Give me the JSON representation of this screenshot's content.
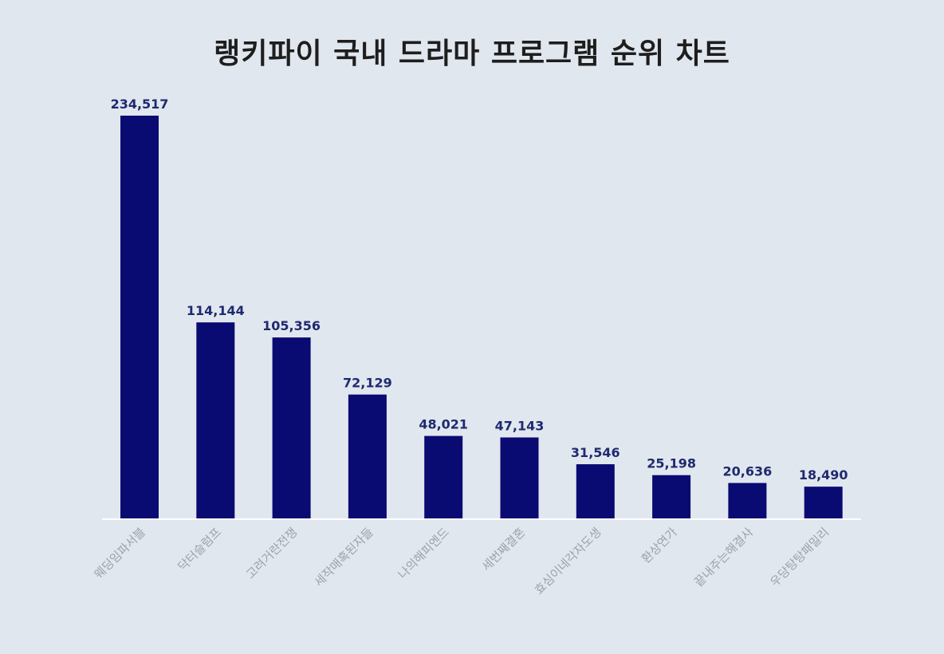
{
  "chart_data": {
    "type": "bar",
    "title": "랭키파이 국내 드라마 프로그램 순위 차트",
    "categories": [
      "웨딩임파서블",
      "닥터슬럼프",
      "고려거란전쟁",
      "세작매혹된자들",
      "나의해피엔드",
      "세번째결혼",
      "효심이네각자도생",
      "환상연가",
      "끝내주는해결사",
      "우당탕탕패밀리"
    ],
    "values": [
      234517,
      114144,
      105356,
      72129,
      48021,
      47143,
      31546,
      25198,
      20636,
      18490
    ],
    "value_labels": [
      "234,517",
      "114,144",
      "105,356",
      "72,129",
      "48,021",
      "47,143",
      "31,546",
      "25,198",
      "20,636",
      "18,490"
    ],
    "xlabel": "",
    "ylabel": "",
    "ylim": [
      0,
      234517
    ],
    "grid": false,
    "bar_color": "#0a0a73"
  }
}
